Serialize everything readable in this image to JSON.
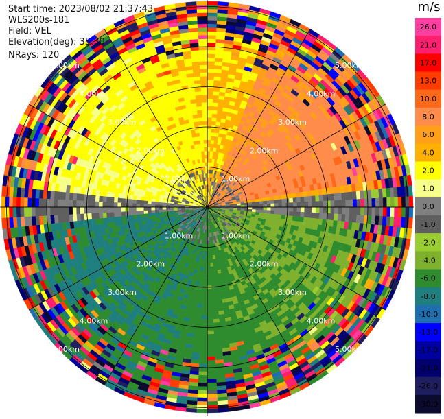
{
  "meta": {
    "start_time": "Start time: 2023/08/02 21:37:43",
    "station": "WLS200s-181",
    "field": "Field: VEL",
    "elevation": "Elevation(deg): 35.30",
    "nrays": "NRays: 120"
  },
  "chart_data": {
    "type": "heatmap",
    "plot_kind": "polar-ppi",
    "units": "m/s",
    "range_rings_km": [
      1.0,
      2.0,
      3.0,
      4.0,
      5.0
    ],
    "ring_labels": [
      "1.00km",
      "2.00km",
      "3.00km",
      "4.00km",
      "5.00km"
    ],
    "grid": true,
    "colorbar": {
      "position": "right",
      "ticks": [
        26.0,
        21.0,
        17.0,
        13.0,
        10.0,
        8.0,
        6.0,
        4.0,
        2.0,
        1.0,
        0.0,
        -1.0,
        -2.0,
        -4.0,
        -6.0,
        -8.0,
        -10.0,
        -13.0,
        -17.0,
        -21.0,
        -26.0,
        -30.0
      ],
      "tick_labels": [
        "26.0",
        "21.0",
        "17.0",
        "13.0",
        "10.0",
        "8.0",
        "6.0",
        "4.0",
        "2.0",
        "1.0",
        "0.0",
        "-1.0",
        "-2.0",
        "-4.0",
        "-6.0",
        "-8.0",
        "-10.0",
        "-13.0",
        "-17.0",
        "-21.0",
        "-26.0",
        "-30.0"
      ],
      "colors": [
        "#ff3f9f",
        "#ff1f6f",
        "#ff0000",
        "#ff3d00",
        "#ff6a1a",
        "#ff8c4a",
        "#ff9f1a",
        "#ffb000",
        "#ffff00",
        "#f5ff8a",
        "#7f7f7f",
        "#5f5f5f",
        "#9acd32",
        "#7fb02e",
        "#2e8b2e",
        "#1f7f7f",
        "#1f6fb0",
        "#0000ff",
        "#0000a0",
        "#00006f",
        "#1f1f5f",
        "#0b0b2f"
      ]
    },
    "velocity_pattern": {
      "north_half_mean_ms": 4.0,
      "south_half_mean_ms": -5.0,
      "northeast_peak_ms": 8.0,
      "far_field_noise": true
    }
  },
  "colors": {
    "background": "#ffffff",
    "grid": "#000000",
    "text": "#111111"
  }
}
